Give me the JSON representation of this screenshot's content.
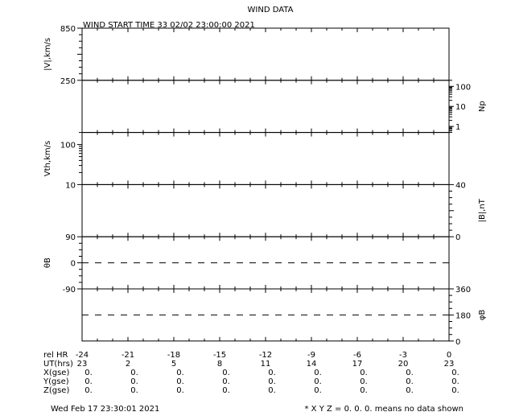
{
  "chart_data": {
    "type": "line",
    "title": "WIND DATA",
    "subtitle": "WIND START TIME  33 02/02 23:00:00 2021",
    "xlim": [
      -24,
      0
    ],
    "grid": false,
    "panels": [
      {
        "ylabel": "|V|,km/s",
        "side": "left",
        "scale": "linear",
        "ylim": [
          250,
          850
        ],
        "tick_labels": [
          "850",
          "250"
        ],
        "series": []
      },
      {
        "ylabel": "Np",
        "side": "right",
        "scale": "log",
        "ylim": [
          0.5,
          200
        ],
        "tick_labels": [
          "100",
          "10",
          "1"
        ],
        "series": []
      },
      {
        "ylabel": "Vth,km/s",
        "side": "left",
        "scale": "log",
        "ylim": [
          10,
          200
        ],
        "tick_labels": [
          "100",
          "10"
        ],
        "series": []
      },
      {
        "ylabel": "|B|,nT",
        "side": "right",
        "scale": "linear",
        "ylim": [
          0,
          40
        ],
        "tick_labels": [
          "40",
          "0"
        ],
        "series": []
      },
      {
        "ylabel": "θB",
        "side": "left",
        "scale": "linear",
        "ylim": [
          -90,
          90
        ],
        "tick_labels": [
          "90",
          "0",
          "-90"
        ],
        "reference_line": 0,
        "series": []
      },
      {
        "ylabel": "φB",
        "side": "right",
        "scale": "linear",
        "ylim": [
          0,
          360
        ],
        "tick_labels": [
          "360",
          "180",
          "0"
        ],
        "reference_line": 180,
        "series": []
      }
    ],
    "table": {
      "row_labels": [
        "rel HR",
        "UT(hrs)",
        "X(gse)",
        "Y(gse)",
        "Z(gse)"
      ],
      "rel_hr": [
        "-24",
        "-21",
        "-18",
        "-15",
        "-12",
        "-9",
        "-6",
        "-3",
        "0"
      ],
      "ut_hrs": [
        "23",
        "2",
        "5",
        "8",
        "11",
        "14",
        "17",
        "20",
        "23"
      ],
      "x_gse": [
        "0.",
        "0.",
        "0.",
        "0.",
        "0.",
        "0.",
        "0.",
        "0.",
        "0."
      ],
      "y_gse": [
        "0.",
        "0.",
        "0.",
        "0.",
        "0.",
        "0.",
        "0.",
        "0.",
        "0."
      ],
      "z_gse": [
        "0.",
        "0.",
        "0.",
        "0.",
        "0.",
        "0.",
        "0.",
        "0.",
        "0."
      ]
    }
  },
  "footer": {
    "timestamp": "Wed Feb 17 23:30:01 2021",
    "note": "* X Y Z = 0. 0. 0. means no data shown"
  }
}
